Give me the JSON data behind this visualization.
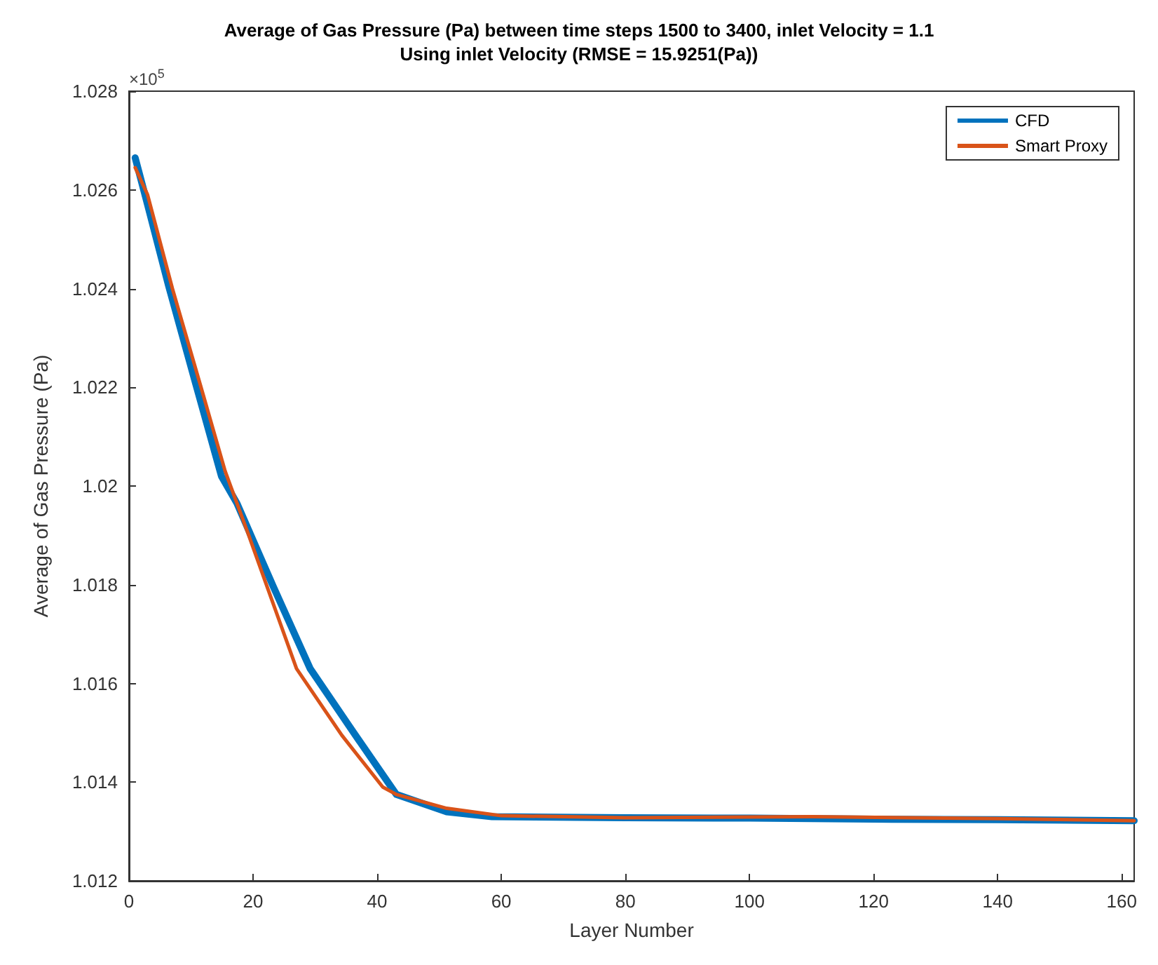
{
  "chart_data": {
    "type": "line",
    "title": "Average of Gas Pressure (Pa) between time steps 1500 to 3400, inlet Velocity = 1.1",
    "subtitle": "Using inlet Velocity (RMSE = 15.9251(Pa))",
    "xlabel": "Layer Number",
    "ylabel": "Average of Gas Pressure (Pa)",
    "annotations": [
      "×10$^{5}$"
    ],
    "xlim": [
      0,
      162
    ],
    "xticks": [
      0,
      20,
      40,
      60,
      80,
      100,
      120,
      140,
      160
    ],
    "ylim": [
      1.012,
      1.028
    ],
    "yticks": [
      1.012,
      1.014,
      1.016,
      1.018,
      1.02,
      1.022,
      1.024,
      1.026,
      1.028
    ],
    "grid": false,
    "legend": "top right",
    "marker": "none",
    "line_style": "solid",
    "series": [
      {
        "name": "CFD",
        "color": "#0072bd",
        "x": [
          1,
          3,
          6.4,
          10.8,
          14.9,
          17.4,
          19.3,
          23.3,
          29.2,
          36.5,
          43.1,
          51.2,
          58.5,
          80,
          100,
          120,
          140,
          162
        ],
        "values": [
          1.02665,
          1.0257,
          1.02405,
          1.02205,
          1.0202,
          1.01965,
          1.0191,
          1.01795,
          1.0163,
          1.01495,
          1.01375,
          1.0134,
          1.0133,
          1.01328,
          1.01327,
          1.01325,
          1.01324,
          1.01322
        ]
      },
      {
        "name": "Smart Proxy",
        "color": "#d95319",
        "x": [
          1,
          3,
          7,
          11.5,
          15.5,
          17.4,
          19.3,
          23,
          27,
          34.3,
          40.9,
          43.1,
          51.2,
          60,
          80,
          110,
          140,
          162
        ],
        "values": [
          1.02645,
          1.0259,
          1.024,
          1.02205,
          1.0203,
          1.01965,
          1.019,
          1.0177,
          1.0163,
          1.01495,
          1.0139,
          1.01375,
          1.01347,
          1.01332,
          1.01328,
          1.0133,
          1.01326,
          1.01322
        ]
      }
    ]
  }
}
